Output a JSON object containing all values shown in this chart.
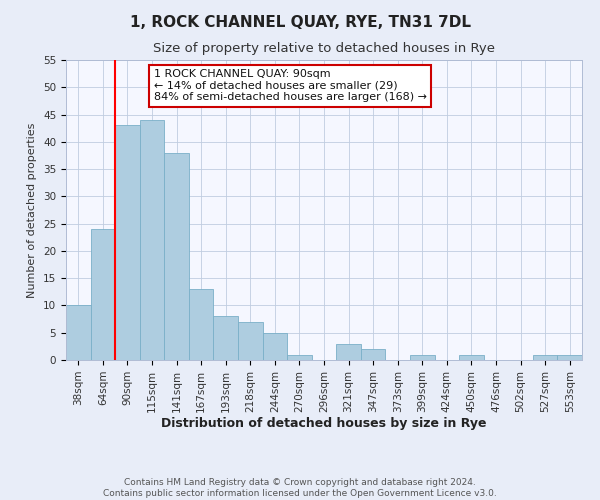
{
  "title": "1, ROCK CHANNEL QUAY, RYE, TN31 7DL",
  "subtitle": "Size of property relative to detached houses in Rye",
  "xlabel": "Distribution of detached houses by size in Rye",
  "ylabel": "Number of detached properties",
  "footer_line1": "Contains HM Land Registry data © Crown copyright and database right 2024.",
  "footer_line2": "Contains public sector information licensed under the Open Government Licence v3.0.",
  "annotation_line1": "1 ROCK CHANNEL QUAY: 90sqm",
  "annotation_line2": "← 14% of detached houses are smaller (29)",
  "annotation_line3": "84% of semi-detached houses are larger (168) →",
  "bar_color": "#aecde0",
  "bar_edge_color": "#7aafc8",
  "red_line_index": 2,
  "categories": [
    "38sqm",
    "64sqm",
    "90sqm",
    "115sqm",
    "141sqm",
    "167sqm",
    "193sqm",
    "218sqm",
    "244sqm",
    "270sqm",
    "296sqm",
    "321sqm",
    "347sqm",
    "373sqm",
    "399sqm",
    "424sqm",
    "450sqm",
    "476sqm",
    "502sqm",
    "527sqm",
    "553sqm"
  ],
  "values": [
    10,
    24,
    43,
    44,
    38,
    13,
    8,
    7,
    5,
    1,
    0,
    3,
    2,
    0,
    1,
    0,
    1,
    0,
    0,
    1,
    1
  ],
  "ylim": [
    0,
    55
  ],
  "yticks": [
    0,
    5,
    10,
    15,
    20,
    25,
    30,
    35,
    40,
    45,
    50,
    55
  ],
  "background_color": "#e8edf8",
  "plot_background_color": "#f5f7ff",
  "grid_color": "#c0cce0",
  "title_fontsize": 11,
  "subtitle_fontsize": 9.5,
  "xlabel_fontsize": 9,
  "ylabel_fontsize": 8,
  "tick_fontsize": 7.5,
  "annotation_fontsize": 8,
  "footer_fontsize": 6.5,
  "annotation_box_color": "#ffffff",
  "annotation_border_color": "#cc0000"
}
